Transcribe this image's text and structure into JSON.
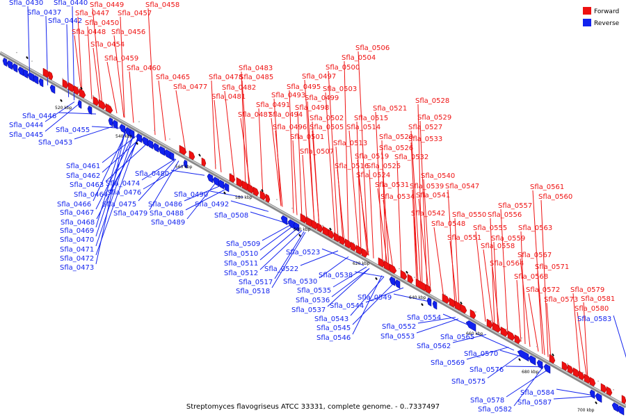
{
  "caption": "Streptomyces flavogriseus ATCC 33331, complete genome. - 0..7337497",
  "legend": [
    {
      "label": "Forward",
      "color": "#ee1111"
    },
    {
      "label": "Reverse",
      "color": "#1122ee"
    }
  ],
  "ticks": [
    "520 kbp",
    "540 kbp",
    "560 kbp",
    "580 kbp",
    "600 kbp",
    "620 kbp",
    "640 kbp",
    "660 kbp",
    "680 kbp",
    "700 kbp"
  ],
  "forward_labels": [
    "Sfla_0447",
    "Sfla_0448",
    "Sfla_0449",
    "Sfla_0450",
    "Sfla_0454",
    "Sfla_0456",
    "Sfla_0457",
    "Sfla_0458",
    "Sfla_0459",
    "Sfla_0460",
    "Sfla_0465",
    "Sfla_0477",
    "Sfla_0478",
    "Sfla_0481",
    "Sfla_0482",
    "Sfla_0483",
    "Sfla_0485",
    "Sfla_0487",
    "Sfla_0491",
    "Sfla_0493",
    "Sfla_0494",
    "Sfla_0495",
    "Sfla_0496",
    "Sfla_0497",
    "Sfla_0498",
    "Sfla_0499",
    "Sfla_0500",
    "Sfla_0501",
    "Sfla_0502",
    "Sfla_0503",
    "Sfla_0504",
    "Sfla_0505",
    "Sfla_0506",
    "Sfla_0507",
    "Sfla_0513",
    "Sfla_0514",
    "Sfla_0515",
    "Sfla_0516",
    "Sfla_0519",
    "Sfla_0520",
    "Sfla_0521",
    "Sfla_0524",
    "Sfla_0525",
    "Sfla_0526",
    "Sfla_0527",
    "Sfla_0528",
    "Sfla_0529",
    "Sfla_0531",
    "Sfla_0532",
    "Sfla_0533",
    "Sfla_0534",
    "Sfla_0539",
    "Sfla_0540",
    "Sfla_0541",
    "Sfla_0542",
    "Sfla_0547",
    "Sfla_0548",
    "Sfla_0550",
    "Sfla_0551",
    "Sfla_0555",
    "Sfla_0556",
    "Sfla_0557",
    "Sfla_0558",
    "Sfla_0559",
    "Sfla_0560",
    "Sfla_0561",
    "Sfla_0563",
    "Sfla_0564",
    "Sfla_0567",
    "Sfla_0568",
    "Sfla_0571",
    "Sfla_0572",
    "Sfla_0573",
    "Sfla_0579",
    "Sfla_0580",
    "Sfla_0581"
  ],
  "reverse_labels": [
    "Sfla_0430",
    "Sfla_0437",
    "Sfla_0440",
    "Sfla_0442",
    "Sfla_0444",
    "Sfla_0445",
    "Sfla_0446",
    "Sfla_0453",
    "Sfla_0455",
    "Sfla_0461",
    "Sfla_0462",
    "Sfla_0463",
    "Sfla_0464",
    "Sfla_0466",
    "Sfla_0467",
    "Sfla_0468",
    "Sfla_0469",
    "Sfla_0470",
    "Sfla_0471",
    "Sfla_0472",
    "Sfla_0473",
    "Sfla_0474",
    "Sfla_0475",
    "Sfla_0476",
    "Sfla_0479",
    "Sfla_0480",
    "Sfla_0486",
    "Sfla_0488",
    "Sfla_0489",
    "Sfla_0490",
    "Sfla_0492",
    "Sfla_0508",
    "Sfla_0509",
    "Sfla_0510",
    "Sfla_0511",
    "Sfla_0512",
    "Sfla_0517",
    "Sfla_0518",
    "Sfla_0522",
    "Sfla_0523",
    "Sfla_0530",
    "Sfla_0535",
    "Sfla_0536",
    "Sfla_0537",
    "Sfla_0538",
    "Sfla_0543",
    "Sfla_0544",
    "Sfla_0545",
    "Sfla_0546",
    "Sfla_0549",
    "Sfla_0552",
    "Sfla_0553",
    "Sfla_0554",
    "Sfla_0562",
    "Sfla_0565",
    "Sfla_0569",
    "Sfla_0570",
    "Sfla_0575",
    "Sfla_0576",
    "Sfla_0578",
    "Sfla_0582",
    "Sfla_0583",
    "Sfla_0584",
    "Sfla_0587"
  ]
}
